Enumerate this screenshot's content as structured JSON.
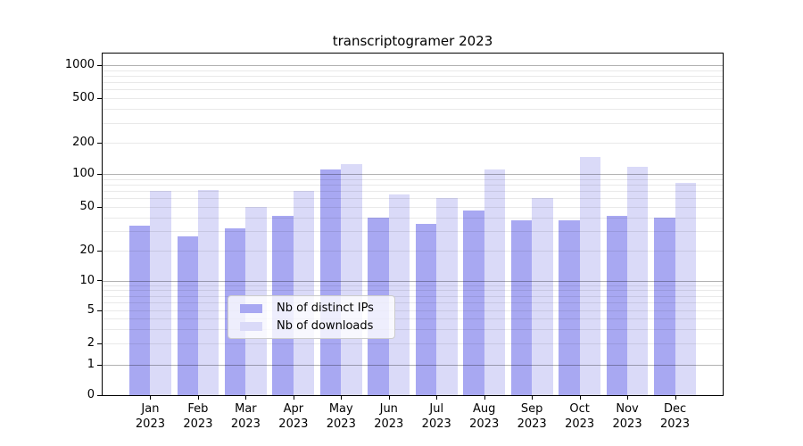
{
  "chart_data": {
    "type": "bar",
    "title": "transcriptogramer 2023",
    "categories": [
      "Jan 2023",
      "Feb 2023",
      "Mar 2023",
      "Apr 2023",
      "May 2023",
      "Jun 2023",
      "Jul 2023",
      "Aug 2023",
      "Sep 2023",
      "Oct 2023",
      "Nov 2023",
      "Dec 2023"
    ],
    "series": [
      {
        "name": "Nb of distinct IPs",
        "color": "#a8a8f2",
        "values": [
          34,
          27,
          32,
          42,
          110,
          40,
          35,
          47,
          38,
          38,
          42,
          40
        ]
      },
      {
        "name": "Nb of downloads",
        "color": "#dadaf8",
        "values": [
          70,
          72,
          50,
          70,
          125,
          65,
          60,
          110,
          60,
          146,
          118,
          83
        ]
      }
    ],
    "xlabel": "",
    "ylabel": "",
    "yticks": [
      0,
      1,
      2,
      5,
      10,
      20,
      50,
      100,
      200,
      500,
      1000
    ],
    "yscale": "symlog",
    "ylim": [
      0,
      1300
    ],
    "grid": "both-major-and-minor",
    "legend_position": "lower center",
    "colors": {
      "major_gridline": "#b0b0b0",
      "minor_gridline": "#ececec",
      "axis": "#000000",
      "background": "#ffffff"
    }
  }
}
